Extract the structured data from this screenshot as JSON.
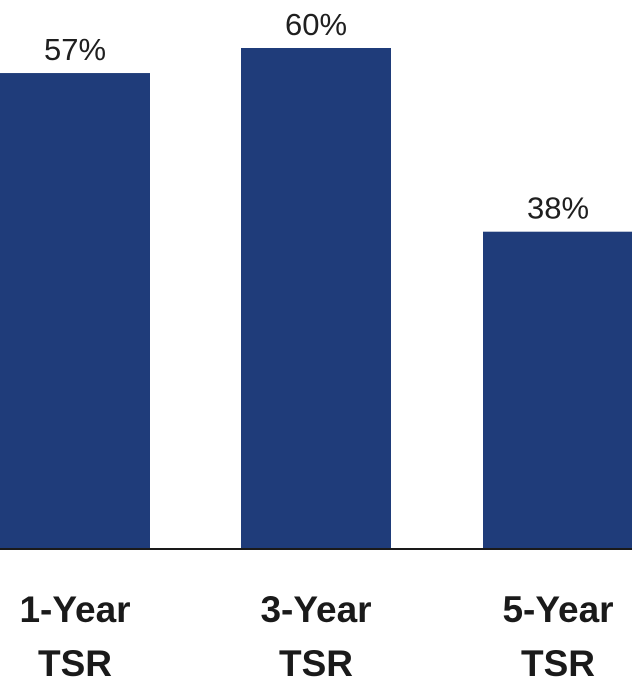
{
  "chart_data": {
    "type": "bar",
    "categories": [
      [
        "1-Year",
        "TSR"
      ],
      [
        "3-Year",
        "TSR"
      ],
      [
        "5-Year",
        "TSR"
      ]
    ],
    "values": [
      57,
      60,
      38
    ],
    "value_labels": [
      "57%",
      "60%",
      "38%"
    ],
    "ylim": [
      0,
      60
    ],
    "bar_color": "#1f3c7a",
    "axis_color": "#1a1a1a",
    "grid": false
  }
}
